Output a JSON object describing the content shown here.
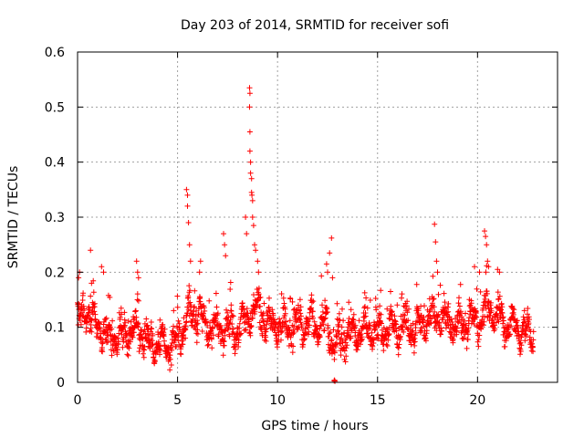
{
  "chart_data": {
    "type": "scatter",
    "title": "Day 203 of 2014, SRMTID for receiver sofi",
    "xlabel": "GPS time / hours",
    "ylabel": "SRMTID / TECUs",
    "xlim": [
      0,
      24
    ],
    "ylim": [
      0,
      0.6
    ],
    "xticks": [
      0,
      5,
      10,
      15,
      20
    ],
    "yticks": [
      0,
      0.1,
      0.2,
      0.3,
      0.4,
      0.5,
      0.6
    ],
    "xtick_labels": [
      "0",
      "5",
      "10",
      "15",
      "20"
    ],
    "ytick_labels": [
      "0",
      "0.1",
      "0.2",
      "0.3",
      "0.4",
      "0.5",
      "0.6"
    ],
    "grid": true,
    "marker": "+",
    "color": "#ff0000",
    "series": [
      {
        "name": "SRMTID",
        "baseline_profile": [
          [
            0.0,
            0.115
          ],
          [
            0.5,
            0.125
          ],
          [
            1.0,
            0.105
          ],
          [
            1.5,
            0.08
          ],
          [
            2.0,
            0.08
          ],
          [
            2.5,
            0.09
          ],
          [
            3.0,
            0.095
          ],
          [
            3.5,
            0.07
          ],
          [
            4.0,
            0.07
          ],
          [
            4.5,
            0.065
          ],
          [
            5.0,
            0.075
          ],
          [
            5.5,
            0.12
          ],
          [
            6.0,
            0.13
          ],
          [
            6.5,
            0.1
          ],
          [
            7.0,
            0.1
          ],
          [
            7.5,
            0.095
          ],
          [
            8.0,
            0.09
          ],
          [
            8.5,
            0.12
          ],
          [
            9.0,
            0.13
          ],
          [
            9.5,
            0.11
          ],
          [
            10.0,
            0.1
          ],
          [
            10.5,
            0.1
          ],
          [
            11.0,
            0.1
          ],
          [
            11.5,
            0.11
          ],
          [
            12.0,
            0.1
          ],
          [
            12.5,
            0.11
          ],
          [
            12.8,
            0.06
          ],
          [
            13.0,
            0.075
          ],
          [
            13.5,
            0.085
          ],
          [
            14.0,
            0.09
          ],
          [
            14.5,
            0.1
          ],
          [
            15.0,
            0.09
          ],
          [
            15.5,
            0.1
          ],
          [
            16.0,
            0.1
          ],
          [
            16.5,
            0.095
          ],
          [
            17.0,
            0.1
          ],
          [
            17.5,
            0.11
          ],
          [
            18.0,
            0.12
          ],
          [
            18.5,
            0.11
          ],
          [
            19.0,
            0.1
          ],
          [
            19.5,
            0.11
          ],
          [
            20.0,
            0.115
          ],
          [
            20.5,
            0.13
          ],
          [
            21.0,
            0.12
          ],
          [
            21.5,
            0.105
          ],
          [
            22.0,
            0.1
          ],
          [
            22.5,
            0.09
          ],
          [
            22.8,
            0.08
          ]
        ],
        "peaks": [
          [
            0.05,
            0.19
          ],
          [
            0.1,
            0.2
          ],
          [
            0.65,
            0.24
          ],
          [
            0.7,
            0.18
          ],
          [
            1.2,
            0.21
          ],
          [
            1.3,
            0.2
          ],
          [
            2.95,
            0.22
          ],
          [
            3.0,
            0.2
          ],
          [
            3.05,
            0.19
          ],
          [
            5.45,
            0.35
          ],
          [
            5.5,
            0.34
          ],
          [
            5.5,
            0.32
          ],
          [
            5.55,
            0.29
          ],
          [
            5.6,
            0.25
          ],
          [
            5.65,
            0.22
          ],
          [
            6.1,
            0.2
          ],
          [
            6.15,
            0.22
          ],
          [
            7.3,
            0.27
          ],
          [
            7.35,
            0.25
          ],
          [
            7.4,
            0.23
          ],
          [
            8.4,
            0.3
          ],
          [
            8.45,
            0.27
          ],
          [
            8.6,
            0.535
          ],
          [
            8.62,
            0.525
          ],
          [
            8.6,
            0.5
          ],
          [
            8.62,
            0.455
          ],
          [
            8.62,
            0.42
          ],
          [
            8.65,
            0.4
          ],
          [
            8.65,
            0.38
          ],
          [
            8.7,
            0.37
          ],
          [
            8.7,
            0.345
          ],
          [
            8.72,
            0.34
          ],
          [
            8.75,
            0.33
          ],
          [
            8.75,
            0.3
          ],
          [
            8.8,
            0.285
          ],
          [
            8.85,
            0.25
          ],
          [
            8.9,
            0.24
          ],
          [
            9.0,
            0.22
          ],
          [
            9.05,
            0.2
          ],
          [
            12.45,
            0.215
          ],
          [
            12.5,
            0.2
          ],
          [
            12.6,
            0.235
          ],
          [
            12.7,
            0.262
          ],
          [
            12.75,
            0.19
          ],
          [
            17.85,
            0.287
          ],
          [
            17.9,
            0.255
          ],
          [
            17.95,
            0.22
          ],
          [
            18.0,
            0.2
          ],
          [
            19.85,
            0.21
          ],
          [
            20.1,
            0.2
          ],
          [
            20.35,
            0.275
          ],
          [
            20.4,
            0.265
          ],
          [
            20.45,
            0.25
          ],
          [
            20.5,
            0.22
          ],
          [
            20.55,
            0.21
          ],
          [
            21.0,
            0.205
          ],
          [
            21.1,
            0.2
          ]
        ],
        "dropouts": [
          [
            12.83,
            0.003
          ],
          [
            12.85,
            0.004
          ],
          [
            12.87,
            0.002
          ]
        ]
      }
    ]
  }
}
